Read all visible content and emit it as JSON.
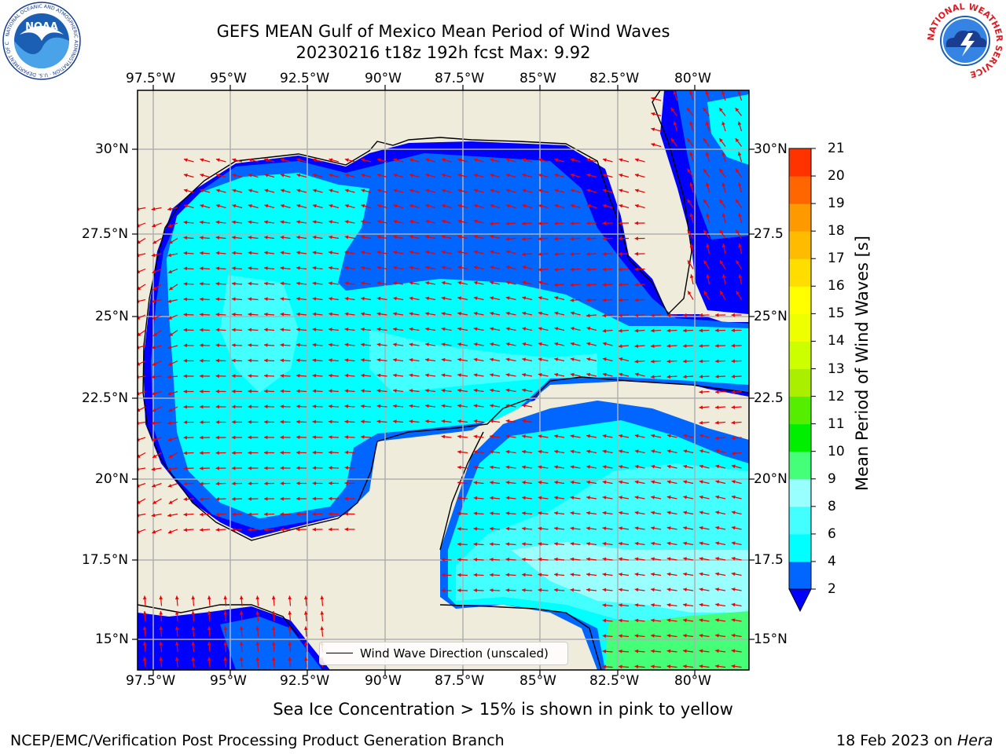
{
  "header": {
    "title_line1": "GEFS MEAN Gulf of Mexico Mean Period of Wind Waves",
    "title_line2": "20230216 t18z 192h fcst   Max: 9.92"
  },
  "logos": {
    "left": {
      "name": "NOAA",
      "ring_text": "NATIONAL OCEANIC AND ATMOSPHERIC ADMINISTRATION · U.S. DEPARTMENT OF COMMERCE"
    },
    "right": {
      "ring_text": "NATIONAL WEATHER SERVICE"
    }
  },
  "axes": {
    "lon_ticks": [
      "97.5°W",
      "95°W",
      "92.5°W",
      "90°W",
      "87.5°W",
      "85°W",
      "82.5°W",
      "80°W"
    ],
    "lat_ticks_left": [
      "30°N",
      "27.5°N",
      "25°N",
      "22.5°N",
      "20°N",
      "17.5°N",
      "15°N"
    ],
    "lat_ticks_right": [
      "30°N",
      "27.5",
      "25°N",
      "22.5",
      "20°N",
      "17.5",
      "15°N"
    ]
  },
  "legend": {
    "label": "Wind Wave Direction (unscaled)"
  },
  "colorbar": {
    "title": "Mean Period of Wind Waves [s]",
    "labels": [
      "2",
      "4",
      "6",
      "8",
      "9",
      "10",
      "11",
      "12",
      "13",
      "14",
      "15",
      "16",
      "17",
      "18",
      "19",
      "20",
      "21"
    ],
    "colors": [
      "#0066ff",
      "#00ffff",
      "#44ffff",
      "#99ffff",
      "#44ff77",
      "#00ee00",
      "#55ee00",
      "#aaee00",
      "#ccff00",
      "#eeff00",
      "#ffff00",
      "#ffdd00",
      "#ffbb00",
      "#ff9900",
      "#ff6600",
      "#ff3300"
    ],
    "under_color": "#0000ff"
  },
  "colors": {
    "land": "#efecdc",
    "grid": "#b0b0b0",
    "arrow": "#ee0000"
  },
  "caption": "Sea Ice Concentration > 15% is shown in pink to yellow",
  "footer": {
    "left": "NCEP/EMC/Verification Post Processing Product Generation Branch",
    "date": "18 Feb 2023 on ",
    "machine": "Hera"
  }
}
